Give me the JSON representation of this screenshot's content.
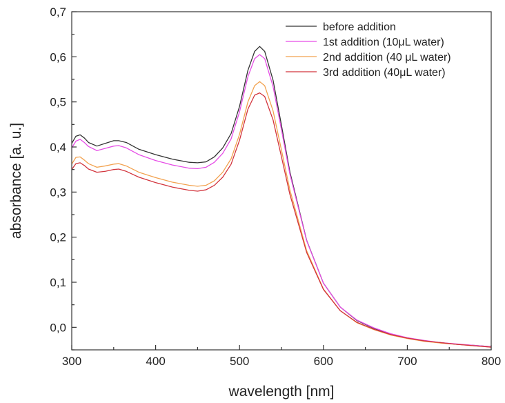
{
  "chart_data": {
    "type": "line",
    "title": "",
    "xlabel": "wavelength [nm]",
    "ylabel": "absorbance [a. u.]",
    "xlim": [
      300,
      800
    ],
    "ylim": [
      -0.05,
      0.7
    ],
    "x_ticks": [
      300,
      400,
      500,
      600,
      700,
      800
    ],
    "x_tick_labels": [
      "300",
      "400",
      "500",
      "600",
      "700",
      "800"
    ],
    "y_ticks": [
      0.0,
      0.1,
      0.2,
      0.3,
      0.4,
      0.5,
      0.6,
      0.7
    ],
    "y_tick_labels": [
      "0,0",
      "0,1",
      "0,2",
      "0,3",
      "0,4",
      "0,5",
      "0,6",
      "0,7"
    ],
    "grid": false,
    "legend_position": "top-right",
    "x": [
      300,
      305,
      310,
      315,
      320,
      330,
      340,
      350,
      356,
      365,
      380,
      400,
      420,
      440,
      450,
      460,
      470,
      480,
      490,
      500,
      510,
      518,
      524,
      530,
      540,
      550,
      560,
      580,
      600,
      620,
      640,
      660,
      680,
      700,
      720,
      740,
      760,
      780,
      800
    ],
    "series": [
      {
        "name": "before addition",
        "color": "#333333",
        "values": [
          0.408,
          0.424,
          0.427,
          0.42,
          0.41,
          0.402,
          0.408,
          0.414,
          0.414,
          0.41,
          0.395,
          0.383,
          0.373,
          0.366,
          0.365,
          0.367,
          0.378,
          0.398,
          0.43,
          0.49,
          0.57,
          0.612,
          0.623,
          0.612,
          0.548,
          0.448,
          0.345,
          0.193,
          0.098,
          0.045,
          0.015,
          -0.002,
          -0.015,
          -0.024,
          -0.03,
          -0.034,
          -0.038,
          -0.04,
          -0.043
        ]
      },
      {
        "name": "1st addition (10μL water)",
        "color": "#e64ce6",
        "values": [
          0.398,
          0.413,
          0.417,
          0.41,
          0.401,
          0.392,
          0.397,
          0.402,
          0.403,
          0.398,
          0.383,
          0.37,
          0.36,
          0.353,
          0.352,
          0.355,
          0.366,
          0.386,
          0.418,
          0.478,
          0.556,
          0.596,
          0.605,
          0.596,
          0.534,
          0.438,
          0.34,
          0.192,
          0.098,
          0.045,
          0.016,
          -0.001,
          -0.014,
          -0.023,
          -0.029,
          -0.034,
          -0.037,
          -0.04,
          -0.043
        ]
      },
      {
        "name": "2nd addition (40 μL water)",
        "color": "#f2a24f",
        "values": [
          0.362,
          0.377,
          0.378,
          0.371,
          0.363,
          0.355,
          0.358,
          0.362,
          0.363,
          0.358,
          0.344,
          0.332,
          0.322,
          0.315,
          0.313,
          0.315,
          0.325,
          0.344,
          0.374,
          0.428,
          0.5,
          0.536,
          0.545,
          0.536,
          0.48,
          0.393,
          0.305,
          0.17,
          0.085,
          0.037,
          0.01,
          -0.005,
          -0.017,
          -0.025,
          -0.031,
          -0.035,
          -0.038,
          -0.041,
          -0.044
        ]
      },
      {
        "name": "3rd addition (40μL water)",
        "color": "#d2343c",
        "values": [
          0.35,
          0.363,
          0.365,
          0.359,
          0.351,
          0.344,
          0.346,
          0.35,
          0.351,
          0.346,
          0.333,
          0.321,
          0.311,
          0.304,
          0.302,
          0.305,
          0.315,
          0.333,
          0.362,
          0.415,
          0.484,
          0.515,
          0.52,
          0.512,
          0.46,
          0.378,
          0.295,
          0.166,
          0.084,
          0.037,
          0.011,
          -0.004,
          -0.016,
          -0.024,
          -0.03,
          -0.034,
          -0.038,
          -0.041,
          -0.044
        ]
      }
    ]
  }
}
